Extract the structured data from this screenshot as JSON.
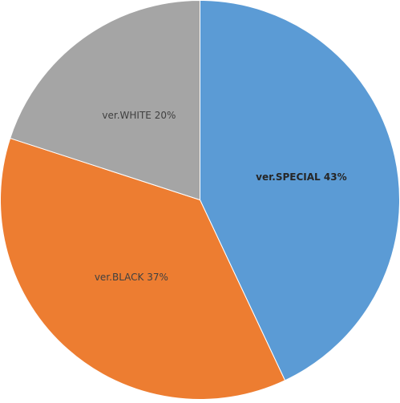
{
  "chart_data": {
    "type": "pie",
    "values": [
      43,
      37,
      20
    ],
    "value_labels": [
      "ver.SPECIAL 43%",
      "ver.BLACK 37%",
      "ver.WHITE 20%"
    ],
    "colors": [
      "#5b9bd5",
      "#ed7d31",
      "#a5a5a5"
    ]
  }
}
